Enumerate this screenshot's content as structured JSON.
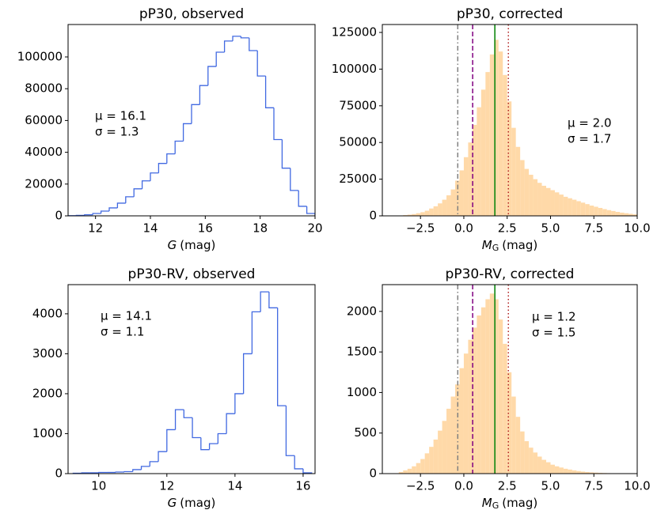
{
  "chart_data": [
    {
      "type": "histogram",
      "style": "step",
      "title": "pP30, observed",
      "color": "#4169e1",
      "xlabel": {
        "symbol": "G",
        "unit": "(mag)"
      },
      "bins": [
        11,
        11.3,
        11.6,
        11.9,
        12.2,
        12.5,
        12.8,
        13.1,
        13.4,
        13.7,
        14,
        14.3,
        14.6,
        14.9,
        15.2,
        15.5,
        15.8,
        16.1,
        16.4,
        16.7,
        17,
        17.3,
        17.6,
        17.9,
        18.2,
        18.5,
        18.8,
        19.1,
        19.4,
        19.7,
        20
      ],
      "values": [
        100,
        300,
        700,
        1500,
        3000,
        5000,
        8000,
        12000,
        17000,
        22000,
        27000,
        33000,
        39000,
        47000,
        58000,
        70000,
        82000,
        94000,
        103000,
        110000,
        113000,
        112000,
        104000,
        88000,
        68000,
        48000,
        30000,
        16000,
        6000,
        1500
      ],
      "xlim": [
        11,
        20
      ],
      "xticks": [
        12,
        14,
        16,
        18,
        20
      ],
      "ylim": [
        0,
        120400
      ],
      "yticks": [
        0,
        20000,
        40000,
        60000,
        80000,
        100000
      ],
      "annotations": [
        "μ = 16.1",
        "σ = 1.3"
      ]
    },
    {
      "type": "histogram",
      "style": "filled",
      "title": "pP30, corrected",
      "color": "#ffd59e",
      "xlabel": {
        "symbol": "M",
        "subscript": "G",
        "unit": "(mag)"
      },
      "bins": [
        -4,
        -3.75,
        -3.5,
        -3.25,
        -3,
        -2.75,
        -2.5,
        -2.25,
        -2,
        -1.75,
        -1.5,
        -1.25,
        -1,
        -0.75,
        -0.5,
        -0.25,
        0,
        0.25,
        0.5,
        0.75,
        1,
        1.25,
        1.5,
        1.75,
        2,
        2.25,
        2.5,
        2.75,
        3,
        3.25,
        3.5,
        3.75,
        4,
        4.25,
        4.5,
        4.75,
        5,
        5.25,
        5.5,
        5.75,
        6,
        6.25,
        6.5,
        6.75,
        7,
        7.25,
        7.5,
        7.75,
        8,
        8.25,
        8.5,
        8.75,
        9,
        9.25,
        9.5,
        9.75,
        10
      ],
      "values": [
        0,
        200,
        500,
        800,
        1200,
        1800,
        2500,
        3500,
        5000,
        6500,
        8500,
        11000,
        14000,
        18000,
        24000,
        31000,
        40000,
        50000,
        62000,
        74000,
        86000,
        98000,
        110000,
        120000,
        112000,
        96000,
        78000,
        60000,
        47000,
        38000,
        32000,
        28000,
        25000,
        22500,
        20500,
        19000,
        17500,
        16000,
        14500,
        13000,
        12000,
        11000,
        10000,
        9000,
        8000,
        7000,
        6200,
        5400,
        4600,
        3900,
        3300,
        2700,
        2200,
        1800,
        1400,
        1000
      ],
      "xlim": [
        -4.7,
        10
      ],
      "xticks": [
        {
          "value": -2.5,
          "label": "−2.5"
        },
        {
          "value": 0,
          "label": "0.0"
        },
        2.5,
        {
          "value": 5,
          "label": "5.0"
        },
        7.5,
        {
          "value": 10,
          "label": "10.0"
        }
      ],
      "ylim": [
        0,
        130400
      ],
      "yticks": [
        0,
        25000,
        50000,
        75000,
        100000,
        125000
      ],
      "vlines": [
        {
          "value": -0.35,
          "color": "#808080",
          "linestyle": "dashdot"
        },
        {
          "value": 0.51,
          "color": "#800080",
          "linestyle": "dashed"
        },
        {
          "value": 1.79,
          "color": "#008000",
          "linestyle": "solid"
        },
        {
          "value": 2.57,
          "color": "#b22222",
          "linestyle": "dotted"
        }
      ],
      "annotations": [
        "μ = 2.0",
        "σ = 1.7"
      ]
    },
    {
      "type": "histogram",
      "style": "step",
      "title": "pP30-RV, observed",
      "color": "#4169e1",
      "xlabel": {
        "symbol": "G",
        "unit": "(mag)"
      },
      "bins": [
        9.25,
        9.5,
        9.75,
        10,
        10.25,
        10.5,
        10.75,
        11,
        11.25,
        11.5,
        11.75,
        12,
        12.25,
        12.5,
        12.75,
        13,
        13.25,
        13.5,
        13.75,
        14,
        14.25,
        14.5,
        14.75,
        15,
        15.25,
        15.5,
        15.75,
        16,
        16.25
      ],
      "values": [
        10,
        20,
        20,
        30,
        30,
        40,
        50,
        100,
        180,
        300,
        550,
        1100,
        1600,
        1400,
        900,
        600,
        750,
        1000,
        1500,
        2000,
        3000,
        4050,
        4550,
        4150,
        1700,
        450,
        120,
        20
      ],
      "xlim": [
        9.1,
        16.35
      ],
      "xticks": [
        10,
        12,
        14,
        16
      ],
      "ylim": [
        0,
        4730
      ],
      "yticks": [
        0,
        1000,
        2000,
        3000,
        4000
      ],
      "annotations": [
        "μ = 14.1",
        "σ = 1.1"
      ]
    },
    {
      "type": "histogram",
      "style": "filled",
      "title": "pP30-RV, corrected",
      "color": "#ffd59e",
      "xlabel": {
        "symbol": "M",
        "subscript": "G",
        "unit": "(mag)"
      },
      "bins": [
        -4,
        -3.75,
        -3.5,
        -3.25,
        -3,
        -2.75,
        -2.5,
        -2.25,
        -2,
        -1.75,
        -1.5,
        -1.25,
        -1,
        -0.75,
        -0.5,
        -0.25,
        0,
        0.25,
        0.5,
        0.75,
        1,
        1.25,
        1.5,
        1.75,
        2,
        2.25,
        2.5,
        2.75,
        3,
        3.25,
        3.5,
        3.75,
        4,
        4.25,
        4.5,
        4.75,
        5,
        5.25,
        5.5,
        5.75,
        6,
        6.25,
        6.5,
        6.75,
        7,
        7.25,
        7.5,
        7.75,
        8,
        8.25,
        8.5,
        8.75,
        9,
        9.25,
        9.5,
        9.75,
        10
      ],
      "values": [
        0,
        20,
        40,
        60,
        90,
        130,
        180,
        250,
        330,
        420,
        530,
        650,
        800,
        950,
        1100,
        1300,
        1480,
        1650,
        1800,
        1950,
        2050,
        2150,
        2220,
        2150,
        1900,
        1600,
        1250,
        950,
        700,
        520,
        400,
        320,
        260,
        210,
        170,
        140,
        110,
        90,
        75,
        60,
        50,
        40,
        32,
        25,
        20,
        15,
        12,
        9,
        7,
        5,
        4,
        3,
        2,
        1,
        1,
        0
      ],
      "xlim": [
        -4.7,
        10
      ],
      "xticks": [
        {
          "value": -2.5,
          "label": "−2.5"
        },
        {
          "value": 0,
          "label": "0.0"
        },
        2.5,
        {
          "value": 5,
          "label": "5.0"
        },
        7.5,
        {
          "value": 10,
          "label": "10.0"
        }
      ],
      "ylim": [
        0,
        2330
      ],
      "yticks": [
        0,
        500,
        1000,
        1500,
        2000
      ],
      "vlines": [
        {
          "value": -0.35,
          "color": "#808080",
          "linestyle": "dashdot"
        },
        {
          "value": 0.51,
          "color": "#800080",
          "linestyle": "dashed"
        },
        {
          "value": 1.79,
          "color": "#008000",
          "linestyle": "solid"
        },
        {
          "value": 2.57,
          "color": "#b22222",
          "linestyle": "dotted"
        }
      ],
      "annotations": [
        "μ = 1.2",
        "σ = 1.5"
      ]
    }
  ]
}
